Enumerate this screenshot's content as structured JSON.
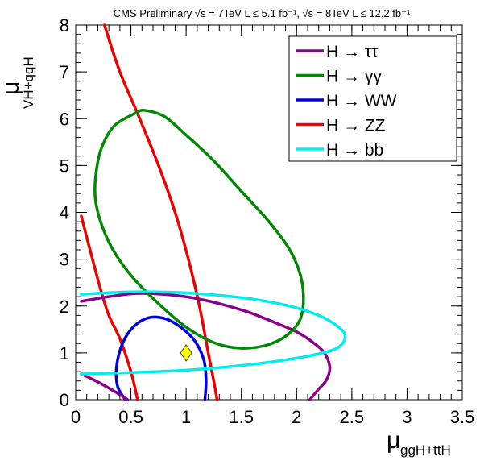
{
  "chart_data": {
    "type": "line",
    "title": "CMS Preliminary  √s = 7TeV L ≤ 5.1 fb⁻¹, √s = 8TeV  L ≤ 12.2 fb⁻¹",
    "xlabel": "μ",
    "xlabel_sub": "ggH+ttH",
    "ylabel": "μ",
    "ylabel_sub": "VH+qqH",
    "xlim": [
      0,
      3.5
    ],
    "ylim": [
      0,
      8
    ],
    "x_ticks": [
      0,
      0.5,
      1,
      1.5,
      2,
      2.5,
      3,
      3.5
    ],
    "x_tick_labels": [
      "0",
      "0.5",
      "1",
      "1.5",
      "2",
      "2.5",
      "3",
      "3.5"
    ],
    "y_ticks": [
      0,
      1,
      2,
      3,
      4,
      5,
      6,
      7,
      8
    ],
    "y_tick_labels": [
      "0",
      "1",
      "2",
      "3",
      "4",
      "5",
      "6",
      "7",
      "8"
    ],
    "legend_position": "top-right",
    "sm_point": {
      "x": 1.0,
      "y": 1.0,
      "color": "#ffff00",
      "marker": "diamond"
    },
    "series": [
      {
        "name": "H → ττ",
        "color": "#8a008a",
        "segments": [
          [
            [
              0.05,
              2.1
            ],
            [
              0.3,
              2.2
            ],
            [
              0.55,
              2.27
            ],
            [
              0.8,
              2.25
            ],
            [
              1.05,
              2.18
            ],
            [
              1.3,
              2.05
            ],
            [
              1.55,
              1.88
            ],
            [
              1.8,
              1.65
            ],
            [
              2.0,
              1.45
            ],
            [
              2.15,
              1.22
            ],
            [
              2.25,
              1.0
            ],
            [
              2.3,
              0.7
            ],
            [
              2.27,
              0.42
            ],
            [
              2.19,
              0.2
            ],
            [
              2.12,
              0.0
            ]
          ],
          [
            [
              0.05,
              0.55
            ],
            [
              0.2,
              0.38
            ],
            [
              0.32,
              0.22
            ],
            [
              0.42,
              0.08
            ],
            [
              0.47,
              0.0
            ]
          ]
        ]
      },
      {
        "name": "H → γγ",
        "color": "#008800",
        "segments": [
          [
            [
              0.55,
              6.13
            ],
            [
              0.35,
              5.85
            ],
            [
              0.23,
              5.35
            ],
            [
              0.18,
              4.75
            ],
            [
              0.18,
              4.25
            ],
            [
              0.24,
              3.7
            ],
            [
              0.35,
              3.15
            ],
            [
              0.52,
              2.6
            ],
            [
              0.75,
              2.05
            ],
            [
              1.0,
              1.55
            ],
            [
              1.25,
              1.22
            ],
            [
              1.5,
              1.1
            ],
            [
              1.75,
              1.18
            ],
            [
              1.95,
              1.45
            ],
            [
              2.05,
              1.85
            ],
            [
              2.05,
              2.5
            ],
            [
              1.95,
              3.15
            ],
            [
              1.75,
              3.8
            ],
            [
              1.5,
              4.45
            ],
            [
              1.25,
              5.1
            ],
            [
              1.0,
              5.65
            ],
            [
              0.8,
              6.05
            ],
            [
              0.62,
              6.18
            ],
            [
              0.55,
              6.13
            ]
          ]
        ]
      },
      {
        "name": "H → WW",
        "color": "#0000dd",
        "segments": [
          [
            [
              0.45,
              0.0
            ],
            [
              0.38,
              0.28
            ],
            [
              0.37,
              0.7
            ],
            [
              0.42,
              1.18
            ],
            [
              0.52,
              1.55
            ],
            [
              0.66,
              1.75
            ],
            [
              0.81,
              1.73
            ],
            [
              0.95,
              1.55
            ],
            [
              1.08,
              1.25
            ],
            [
              1.16,
              0.85
            ],
            [
              1.18,
              0.42
            ],
            [
              1.17,
              0.0
            ]
          ]
        ]
      },
      {
        "name": "H → ZZ",
        "color": "#ee0000",
        "segments": [
          [
            [
              0.26,
              8.0
            ],
            [
              0.4,
              7.0
            ],
            [
              0.58,
              6.0
            ],
            [
              0.75,
              5.0
            ],
            [
              0.9,
              4.0
            ],
            [
              1.02,
              3.0
            ],
            [
              1.12,
              2.0
            ],
            [
              1.2,
              1.0
            ],
            [
              1.25,
              0.4
            ],
            [
              1.28,
              0.0
            ]
          ],
          [
            [
              0.05,
              3.92
            ],
            [
              0.13,
              3.2
            ],
            [
              0.22,
              2.4
            ],
            [
              0.3,
              1.8
            ],
            [
              0.4,
              1.3
            ],
            [
              0.5,
              0.6
            ],
            [
              0.56,
              0.0
            ]
          ]
        ]
      },
      {
        "name": "H → bb",
        "color": "#00eeee",
        "segments": [
          [
            [
              0.05,
              2.25
            ],
            [
              0.5,
              2.3
            ],
            [
              1.0,
              2.28
            ],
            [
              1.5,
              2.18
            ],
            [
              1.9,
              2.02
            ],
            [
              2.2,
              1.8
            ],
            [
              2.38,
              1.55
            ],
            [
              2.44,
              1.35
            ],
            [
              2.38,
              1.12
            ],
            [
              2.2,
              0.98
            ],
            [
              1.9,
              0.85
            ],
            [
              1.5,
              0.73
            ],
            [
              1.0,
              0.63
            ],
            [
              0.5,
              0.58
            ],
            [
              0.05,
              0.55
            ]
          ]
        ]
      }
    ]
  }
}
